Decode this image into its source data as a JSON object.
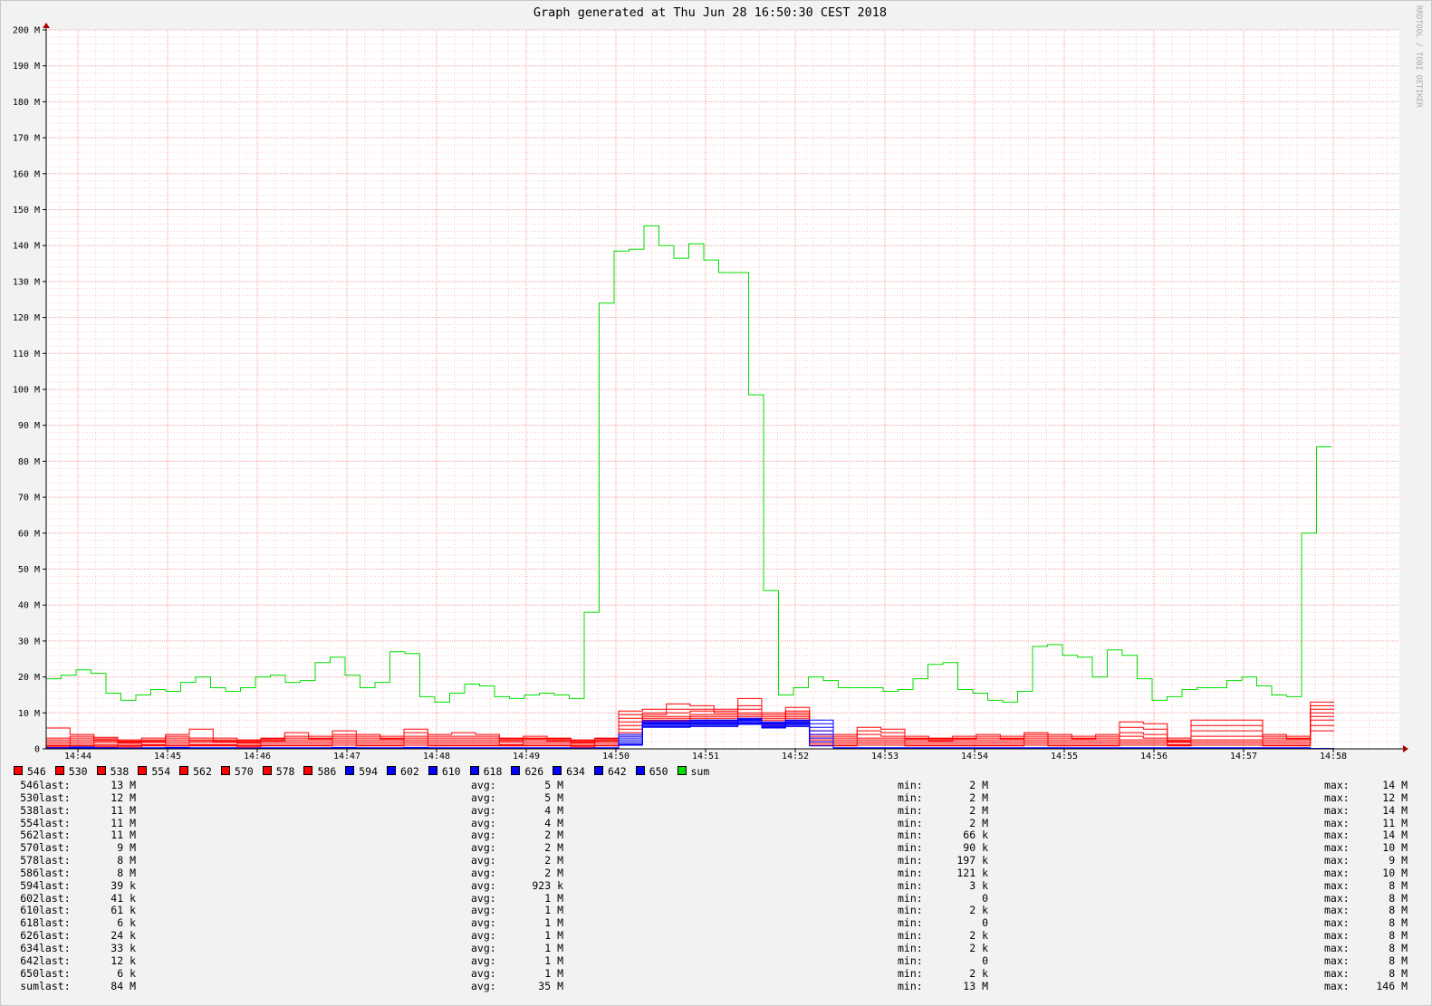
{
  "chart_data": {
    "type": "line",
    "title": "Graph generated at Thu Jun 28 16:50:30 CEST 2018",
    "watermark": "RRDTOOL / TOBI OETIKER",
    "ylim": [
      0,
      200
    ],
    "y_unit": "M",
    "y_ticks": [
      "0",
      "10 M",
      "20 M",
      "30 M",
      "40 M",
      "50 M",
      "60 M",
      "70 M",
      "80 M",
      "90 M",
      "100 M",
      "110 M",
      "120 M",
      "130 M",
      "140 M",
      "150 M",
      "160 M",
      "170 M",
      "180 M",
      "190 M",
      "200 M"
    ],
    "x_ticks": [
      "14:44",
      "14:45",
      "14:46",
      "14:47",
      "14:48",
      "14:49",
      "14:50",
      "14:51",
      "14:52",
      "14:53",
      "14:54",
      "14:55",
      "14:56",
      "14:57",
      "14:58"
    ],
    "grid": true,
    "step_count": 43,
    "legend_placement": "bottom",
    "colors": {
      "red": "#ff0000",
      "blue": "#0000ff",
      "green": "#00e000",
      "grid_major": "#f4a0a0",
      "grid_minor": "#f8c8c8"
    },
    "series": [
      {
        "name": "546",
        "color": "#ff0000",
        "values": [
          5.8,
          4.0,
          3.2,
          2.5,
          3.0,
          4.0,
          5.5,
          3.0,
          2.5,
          3.0,
          4.5,
          3.5,
          5.0,
          4.0,
          3.5,
          5.5,
          4.0,
          4.5,
          4.0,
          3.0,
          3.5,
          3.0,
          2.5,
          3.0,
          10.5,
          11.0,
          12.5,
          12.0,
          11.0,
          14.0,
          10.0,
          11.5,
          5.0,
          4.0,
          6.0,
          5.5,
          3.5,
          3.0,
          3.5,
          4.0,
          3.5,
          4.5,
          4.0,
          3.5,
          4.0,
          7.5,
          7.0,
          3.0,
          8.0,
          8.0,
          8.0,
          4.0,
          3.5,
          13.0
        ]
      },
      {
        "name": "530",
        "color": "#ff0000",
        "values": [
          3.0,
          3.5,
          2.8,
          2.2,
          2.5,
          3.5,
          3.0,
          2.5,
          2.3,
          2.8,
          3.5,
          3.0,
          4.0,
          3.5,
          3.0,
          4.5,
          3.5,
          3.5,
          3.5,
          2.8,
          3.0,
          2.8,
          2.3,
          2.8,
          9.5,
          10.0,
          11.0,
          11.0,
          10.5,
          12.0,
          9.5,
          10.5,
          4.0,
          3.5,
          5.0,
          4.5,
          3.0,
          2.8,
          3.0,
          3.5,
          3.0,
          4.0,
          3.5,
          3.0,
          3.5,
          6.0,
          5.5,
          2.5,
          6.5,
          6.5,
          6.5,
          3.5,
          3.0,
          12.0
        ]
      },
      {
        "name": "538",
        "color": "#ff0000",
        "values": [
          2.5,
          3.0,
          2.5,
          2.0,
          2.2,
          3.0,
          2.5,
          2.2,
          2.0,
          2.5,
          3.0,
          2.8,
          3.5,
          3.0,
          2.8,
          3.5,
          3.0,
          3.0,
          3.0,
          2.5,
          2.8,
          2.5,
          2.0,
          2.5,
          8.5,
          9.5,
          10.0,
          10.5,
          10.0,
          11.0,
          9.0,
          10.0,
          3.5,
          3.0,
          4.0,
          3.5,
          2.8,
          2.5,
          2.8,
          3.0,
          2.8,
          3.5,
          3.0,
          2.8,
          3.0,
          4.5,
          4.0,
          2.2,
          5.0,
          5.0,
          5.0,
          3.0,
          2.8,
          11.0
        ]
      },
      {
        "name": "554",
        "color": "#ff0000",
        "values": [
          2.0,
          2.5,
          2.2,
          1.8,
          2.0,
          2.5,
          2.2,
          2.0,
          1.8,
          2.2,
          2.5,
          2.5,
          3.0,
          2.5,
          2.5,
          3.0,
          2.5,
          2.5,
          2.5,
          2.2,
          2.5,
          2.2,
          1.8,
          2.2,
          7.5,
          9.0,
          9.0,
          9.5,
          9.5,
          10.0,
          8.5,
          9.5,
          3.0,
          2.5,
          3.0,
          3.0,
          2.5,
          2.2,
          2.5,
          2.5,
          2.5,
          3.0,
          2.5,
          2.5,
          2.5,
          3.5,
          3.0,
          2.0,
          3.5,
          3.5,
          3.5,
          2.5,
          2.5,
          10.0
        ]
      },
      {
        "name": "562",
        "color": "#ff0000",
        "values": [
          1.5,
          2.0,
          1.8,
          1.5,
          1.8,
          2.0,
          1.8,
          1.8,
          1.5,
          2.0,
          2.0,
          2.0,
          2.5,
          2.0,
          2.0,
          2.5,
          2.0,
          2.0,
          2.0,
          1.8,
          2.0,
          2.0,
          1.5,
          2.0,
          6.5,
          8.5,
          8.5,
          9.0,
          9.0,
          9.5,
          8.0,
          9.0,
          2.5,
          2.0,
          2.5,
          2.5,
          2.0,
          2.0,
          2.0,
          2.0,
          2.0,
          2.5,
          2.0,
          2.0,
          2.0,
          2.5,
          2.5,
          1.8,
          2.5,
          2.5,
          2.5,
          2.0,
          2.0,
          9.0
        ]
      },
      {
        "name": "570",
        "color": "#ff0000",
        "values": [
          1.0,
          1.5,
          1.2,
          1.0,
          1.2,
          1.5,
          1.2,
          1.2,
          1.0,
          1.5,
          1.5,
          1.5,
          2.0,
          1.5,
          1.5,
          2.0,
          1.5,
          1.5,
          1.5,
          1.2,
          1.5,
          1.5,
          1.0,
          1.5,
          5.5,
          8.0,
          8.0,
          8.5,
          8.5,
          9.0,
          7.5,
          8.5,
          2.0,
          1.5,
          2.0,
          2.0,
          1.5,
          1.5,
          1.5,
          1.5,
          1.5,
          2.0,
          1.5,
          1.5,
          1.5,
          2.0,
          2.0,
          1.2,
          2.0,
          2.0,
          2.0,
          1.5,
          1.5,
          8.0
        ]
      },
      {
        "name": "578",
        "color": "#ff0000",
        "values": [
          0.8,
          1.0,
          0.8,
          0.8,
          1.0,
          1.0,
          1.0,
          1.0,
          0.8,
          1.0,
          1.0,
          1.0,
          1.5,
          1.0,
          1.0,
          1.5,
          1.0,
          1.0,
          1.0,
          1.0,
          1.0,
          1.0,
          0.8,
          1.0,
          4.5,
          7.5,
          7.5,
          8.0,
          8.0,
          8.5,
          7.0,
          8.0,
          1.5,
          1.0,
          1.5,
          1.5,
          1.0,
          1.0,
          1.0,
          1.0,
          1.0,
          1.5,
          1.0,
          1.0,
          1.0,
          1.5,
          1.5,
          1.0,
          1.5,
          1.5,
          1.5,
          1.0,
          1.0,
          6.5
        ]
      },
      {
        "name": "586",
        "color": "#ff0000",
        "values": [
          0.5,
          0.8,
          0.5,
          0.5,
          0.8,
          0.8,
          0.8,
          0.8,
          0.5,
          0.8,
          0.8,
          0.8,
          1.0,
          0.8,
          0.8,
          1.0,
          0.8,
          0.8,
          0.8,
          0.8,
          0.8,
          0.8,
          0.5,
          0.8,
          3.5,
          7.0,
          7.0,
          7.5,
          7.5,
          8.0,
          6.5,
          7.5,
          1.0,
          0.8,
          1.0,
          1.0,
          0.8,
          0.8,
          0.8,
          0.8,
          0.8,
          1.0,
          0.8,
          0.8,
          0.8,
          1.0,
          1.0,
          0.8,
          1.0,
          1.0,
          1.0,
          0.8,
          0.8,
          5.0
        ]
      },
      {
        "name": "594",
        "color": "#0000ff",
        "values": [
          0.3,
          0.5,
          0.3,
          0.2,
          0.3,
          0.4,
          0.3,
          0.3,
          0.2,
          0.3,
          0.3,
          0.3,
          0.4,
          0.3,
          0.3,
          0.4,
          0.3,
          0.3,
          0.3,
          0.3,
          0.3,
          0.3,
          0.2,
          0.3,
          4.0,
          7.8,
          7.8,
          8.0,
          8.0,
          8.5,
          7.5,
          8.0,
          0.8,
          0.3,
          0.3,
          0.3,
          0.3,
          0.3,
          0.3,
          0.3,
          0.3,
          0.3,
          0.3,
          0.3,
          0.3,
          0.3,
          0.3,
          0.3,
          0.3,
          0.3,
          0.3,
          0.3,
          0.3,
          0.04
        ]
      },
      {
        "name": "602",
        "color": "#0000ff",
        "values": [
          0.2,
          0.4,
          0.2,
          0.2,
          0.2,
          0.3,
          0.2,
          0.2,
          0.2,
          0.2,
          0.2,
          0.2,
          0.3,
          0.2,
          0.2,
          0.3,
          0.2,
          0.2,
          0.2,
          0.2,
          0.2,
          0.2,
          0.2,
          0.2,
          3.5,
          7.5,
          7.5,
          7.8,
          7.8,
          8.2,
          7.2,
          7.8,
          8.0,
          0.2,
          0.2,
          0.2,
          0.2,
          0.2,
          0.2,
          0.2,
          0.2,
          0.2,
          0.2,
          0.2,
          0.2,
          0.2,
          0.2,
          0.2,
          0.2,
          0.2,
          0.2,
          0.2,
          0.2,
          0.04
        ]
      },
      {
        "name": "610",
        "color": "#0000ff",
        "values": [
          0.2,
          0.3,
          0.2,
          0.1,
          0.2,
          0.2,
          0.2,
          0.2,
          0.1,
          0.2,
          0.2,
          0.2,
          0.2,
          0.2,
          0.2,
          0.2,
          0.2,
          0.2,
          0.2,
          0.2,
          0.2,
          0.2,
          0.1,
          0.2,
          3.0,
          7.2,
          7.2,
          7.5,
          7.5,
          8.0,
          7.0,
          7.5,
          7.0,
          0.2,
          0.2,
          0.2,
          0.2,
          0.2,
          0.2,
          0.2,
          0.2,
          0.2,
          0.2,
          0.2,
          0.2,
          0.2,
          0.2,
          0.2,
          0.2,
          0.2,
          0.2,
          0.2,
          0.2,
          0.06
        ]
      },
      {
        "name": "618",
        "color": "#0000ff",
        "values": [
          0.1,
          0.2,
          0.1,
          0.1,
          0.1,
          0.2,
          0.1,
          0.1,
          0.1,
          0.1,
          0.1,
          0.1,
          0.2,
          0.1,
          0.1,
          0.2,
          0.1,
          0.1,
          0.1,
          0.1,
          0.1,
          0.1,
          0.1,
          0.1,
          2.5,
          7.0,
          7.0,
          7.2,
          7.2,
          7.8,
          6.8,
          7.2,
          6.0,
          0.1,
          0.1,
          0.1,
          0.1,
          0.1,
          0.1,
          0.1,
          0.1,
          0.1,
          0.1,
          0.1,
          0.1,
          0.1,
          0.1,
          0.1,
          0.1,
          0.1,
          0.1,
          0.1,
          0.1,
          0.006
        ]
      },
      {
        "name": "626",
        "color": "#0000ff",
        "values": [
          0.1,
          0.1,
          0.1,
          0.1,
          0.1,
          0.1,
          0.1,
          0.1,
          0.1,
          0.1,
          0.1,
          0.1,
          0.1,
          0.1,
          0.1,
          0.1,
          0.1,
          0.1,
          0.1,
          0.1,
          0.1,
          0.1,
          0.1,
          0.1,
          2.0,
          6.8,
          6.8,
          7.0,
          7.0,
          7.5,
          6.5,
          7.0,
          5.0,
          0.1,
          0.1,
          0.1,
          0.1,
          0.1,
          0.1,
          0.1,
          0.1,
          0.1,
          0.1,
          0.1,
          0.1,
          0.1,
          0.1,
          0.1,
          0.1,
          0.1,
          0.1,
          0.1,
          0.1,
          0.02
        ]
      },
      {
        "name": "634",
        "color": "#0000ff",
        "values": [
          0.1,
          0.1,
          0.1,
          0.1,
          0.1,
          0.1,
          0.1,
          0.1,
          0.1,
          0.1,
          0.1,
          0.1,
          0.1,
          0.1,
          0.1,
          0.1,
          0.1,
          0.1,
          0.1,
          0.1,
          0.1,
          0.1,
          0.1,
          0.1,
          1.5,
          6.5,
          6.5,
          6.8,
          6.8,
          7.2,
          6.2,
          6.8,
          4.0,
          0.1,
          0.1,
          0.1,
          0.1,
          0.1,
          0.1,
          0.1,
          0.1,
          0.1,
          0.1,
          0.1,
          0.1,
          0.1,
          0.1,
          0.1,
          0.1,
          0.1,
          0.1,
          0.1,
          0.1,
          0.03
        ]
      },
      {
        "name": "642",
        "color": "#0000ff",
        "values": [
          0.1,
          0.1,
          0.1,
          0.1,
          0.1,
          0.1,
          0.1,
          0.1,
          0.1,
          0.1,
          0.1,
          0.1,
          0.1,
          0.1,
          0.1,
          0.1,
          0.1,
          0.1,
          0.1,
          0.1,
          0.1,
          0.1,
          0.1,
          0.1,
          1.2,
          6.2,
          6.2,
          6.5,
          6.5,
          7.0,
          6.0,
          6.5,
          3.0,
          0.1,
          0.1,
          0.1,
          0.1,
          0.1,
          0.1,
          0.1,
          0.1,
          0.1,
          0.1,
          0.1,
          0.1,
          0.1,
          0.1,
          0.1,
          0.1,
          0.1,
          0.1,
          0.1,
          0.1,
          0.01
        ]
      },
      {
        "name": "650",
        "color": "#0000ff",
        "values": [
          0.05,
          0.05,
          0.05,
          0.05,
          0.05,
          0.05,
          0.05,
          0.05,
          0.05,
          0.05,
          0.05,
          0.05,
          0.05,
          0.05,
          0.05,
          0.05,
          0.05,
          0.05,
          0.05,
          0.05,
          0.05,
          0.05,
          0.05,
          0.05,
          1.0,
          6.0,
          6.0,
          6.2,
          6.2,
          6.8,
          5.8,
          6.2,
          2.0,
          0.05,
          0.05,
          0.05,
          0.05,
          0.05,
          0.05,
          0.05,
          0.05,
          0.05,
          0.05,
          0.05,
          0.05,
          0.05,
          0.05,
          0.05,
          0.05,
          0.05,
          0.05,
          0.05,
          0.05,
          0.006
        ]
      },
      {
        "name": "sum",
        "color": "#00e000",
        "values": [
          19.5,
          20.5,
          22,
          21,
          15.5,
          13.5,
          15,
          16.5,
          16,
          18.5,
          20,
          17,
          16,
          17,
          20,
          20.5,
          18.5,
          19,
          24,
          25.5,
          20.5,
          17,
          18.5,
          27,
          26.5,
          14.5,
          13,
          15.5,
          18,
          17.5,
          14.5,
          14,
          15,
          15.5,
          15,
          14,
          38,
          124,
          138.5,
          139,
          145.5,
          140,
          136.5,
          140.5,
          136,
          132.5,
          132.5,
          98.5,
          44,
          15,
          17,
          20,
          19,
          17,
          17,
          17,
          16,
          16.5,
          19.5,
          23.5,
          24,
          16.5,
          15.5,
          13.5,
          13,
          16,
          28.5,
          29,
          26,
          25.5,
          20,
          27.5,
          26,
          19.5,
          13.5,
          14.5,
          16.5,
          17,
          17,
          19,
          20,
          17.5,
          15,
          14.5,
          60,
          84
        ]
      }
    ],
    "stats": [
      {
        "name": "546",
        "last": "13 M",
        "avg": "5 M",
        "min": "2 M",
        "max": "14 M"
      },
      {
        "name": "530",
        "last": "12 M",
        "avg": "5 M",
        "min": "2 M",
        "max": "12 M"
      },
      {
        "name": "538",
        "last": "11 M",
        "avg": "4 M",
        "min": "2 M",
        "max": "14 M"
      },
      {
        "name": "554",
        "last": "11 M",
        "avg": "4 M",
        "min": "2 M",
        "max": "11 M"
      },
      {
        "name": "562",
        "last": "11 M",
        "avg": "2 M",
        "min": "66 k",
        "max": "14 M"
      },
      {
        "name": "570",
        "last": "9 M",
        "avg": "2 M",
        "min": "90 k",
        "max": "10 M"
      },
      {
        "name": "578",
        "last": "8 M",
        "avg": "2 M",
        "min": "197 k",
        "max": "9 M"
      },
      {
        "name": "586",
        "last": "8 M",
        "avg": "2 M",
        "min": "121 k",
        "max": "10 M"
      },
      {
        "name": "594",
        "last": "39 k",
        "avg": "923 k",
        "min": "3 k",
        "max": "8 M"
      },
      {
        "name": "602",
        "last": "41 k",
        "avg": "1 M",
        "min": "0",
        "max": "8 M"
      },
      {
        "name": "610",
        "last": "61 k",
        "avg": "1 M",
        "min": "2 k",
        "max": "8 M"
      },
      {
        "name": "618",
        "last": "6 k",
        "avg": "1 M",
        "min": "0",
        "max": "8 M"
      },
      {
        "name": "626",
        "last": "24 k",
        "avg": "1 M",
        "min": "2 k",
        "max": "8 M"
      },
      {
        "name": "634",
        "last": "33 k",
        "avg": "1 M",
        "min": "2 k",
        "max": "8 M"
      },
      {
        "name": "642",
        "last": "12 k",
        "avg": "1 M",
        "min": "0",
        "max": "8 M"
      },
      {
        "name": "650",
        "last": "6 k",
        "avg": "1 M",
        "min": "2 k",
        "max": "8 M"
      },
      {
        "name": "sum",
        "last": "84 M",
        "avg": "35 M",
        "min": "13 M",
        "max": "146 M"
      }
    ],
    "stat_labels": {
      "last": "last:",
      "avg": "avg:",
      "min": "min:",
      "max": "max:"
    }
  }
}
